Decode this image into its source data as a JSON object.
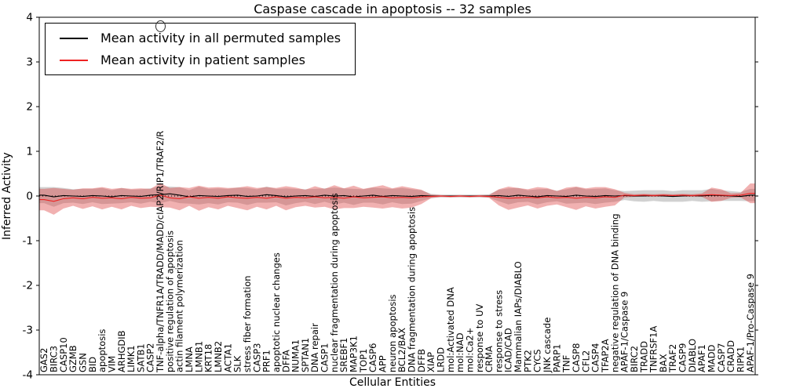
{
  "chart_data": {
    "type": "line",
    "title": "Caspase cascade in apoptosis -- 32 samples",
    "xlabel": "Cellular Entities",
    "ylabel": "Inferred Activity",
    "ylim": [
      -4,
      4
    ],
    "yticks": [
      -4,
      -3,
      -2,
      -1,
      0,
      1,
      2,
      3,
      4
    ],
    "grid": false,
    "legend_position": "upper left",
    "zero_line": {
      "value": 0,
      "style": "dotted"
    },
    "outlier_marker": {
      "category_index": 12,
      "value": 3.82,
      "shape": "circle"
    },
    "categories": [
      "GAS2",
      "BIRC3",
      "CASP10",
      "GZMB",
      "GSN",
      "BID",
      "apoptosis",
      "VIM",
      "ARHGDIB",
      "LIMK1",
      "SATB1",
      "CASP2",
      "TNF-alpha/TNFR1A/TRADD/MADD/cIAP2/RIP1/TRAF2/R",
      "positive regulation of apoptosis",
      "actin filament polymerization",
      "LMNA",
      "LMNB1",
      "KRT18",
      "LMNB2",
      "ACTA1",
      "SLK",
      "stress fiber formation",
      "CASP3",
      "PRF1",
      "apoptotic nuclear changes",
      "DFFA",
      "NUMA1",
      "SPTAN1",
      "DNA repair",
      "CASP1",
      "nuclear fragmentation during apoptosis",
      "SREBF1",
      "MAP3K1",
      "TOP1",
      "CASP6",
      "APP",
      "neuron apoptosis",
      "BCL2/BAX",
      "DNA fragmentation during apoptosis",
      "DFFB",
      "XIAP",
      "LRDD",
      "mol:Activated DNA",
      "mol:NAD",
      "mol:Ca2+",
      "response to UV",
      "CRMA",
      "response to stress",
      "ICAD/CAD",
      "Mammalian IAPs/DIABLO",
      "PTK2",
      "CYCS",
      "JNK cascade",
      "PARP1",
      "TNF",
      "CASP8",
      "CFL2",
      "CASP4",
      "TFAP2A",
      "negative regulation of DNA binding",
      "APAF-1/Caspase 9",
      "BIRC2",
      "TRADD",
      "TNFRSF1A",
      "BAX",
      "TRAF2",
      "CASP9",
      "DIABLO",
      "APAF1",
      "MADD",
      "CASP7",
      "CRADD",
      "RIPK1",
      "APAF-1/Pro-Caspase 9"
    ],
    "series": [
      {
        "name": "Mean activity in all permuted samples",
        "color": "#000000",
        "values": [
          0.02,
          -0.02,
          0.01,
          0.0,
          -0.01,
          0.01,
          0.0,
          -0.02,
          0.01,
          0.0,
          -0.01,
          0.02,
          0.03,
          0.05,
          0.02,
          -0.02,
          0.01,
          0.0,
          -0.01,
          0.01,
          0.02,
          -0.01,
          0.0,
          0.03,
          0.01,
          -0.02,
          0.0,
          0.01,
          -0.01,
          0.02,
          0.0,
          0.01,
          -0.02,
          0.0,
          0.02,
          -0.01,
          0.01,
          0.0,
          -0.01,
          0.01,
          0.0,
          0.0,
          0.0,
          0.0,
          0.0,
          0.0,
          0.0,
          0.01,
          -0.01,
          0.02,
          0.0,
          -0.02,
          0.01,
          0.0,
          -0.01,
          0.02,
          0.0,
          -0.01,
          0.01,
          0.0,
          0.01,
          0.0,
          0.0,
          0.01,
          0.0,
          -0.01,
          0.0,
          0.01,
          0.0,
          0.02,
          0.01,
          0.0,
          -0.01,
          0.02
        ],
        "band": {
          "name": "permuted-std-band",
          "color": "#9a9a9a",
          "opacity": 0.45,
          "half_widths": [
            0.18,
            0.22,
            0.17,
            0.15,
            0.17,
            0.15,
            0.18,
            0.15,
            0.17,
            0.14,
            0.16,
            0.15,
            0.19,
            0.16,
            0.18,
            0.15,
            0.2,
            0.16,
            0.18,
            0.15,
            0.17,
            0.19,
            0.15,
            0.18,
            0.15,
            0.19,
            0.16,
            0.14,
            0.17,
            0.15,
            0.19,
            0.16,
            0.18,
            0.15,
            0.17,
            0.18,
            0.15,
            0.18,
            0.16,
            0.12,
            0.05,
            0.03,
            0.03,
            0.03,
            0.03,
            0.03,
            0.04,
            0.13,
            0.18,
            0.16,
            0.13,
            0.17,
            0.15,
            0.12,
            0.16,
            0.18,
            0.15,
            0.17,
            0.16,
            0.13,
            0.1,
            0.12,
            0.13,
            0.12,
            0.13,
            0.12,
            0.13,
            0.12,
            0.13,
            0.14,
            0.12,
            0.11,
            0.1,
            0.14
          ]
        }
      },
      {
        "name": "Mean activity in patient samples",
        "color": "#ee2222",
        "values": [
          -0.08,
          -0.12,
          -0.06,
          -0.04,
          -0.06,
          -0.03,
          -0.05,
          -0.04,
          -0.06,
          -0.03,
          -0.05,
          -0.04,
          0.02,
          -0.04,
          -0.06,
          -0.02,
          -0.05,
          -0.03,
          -0.05,
          -0.02,
          -0.04,
          -0.05,
          -0.03,
          -0.05,
          -0.02,
          -0.05,
          -0.03,
          -0.04,
          -0.02,
          -0.04,
          -0.03,
          -0.05,
          -0.02,
          -0.04,
          -0.03,
          -0.02,
          -0.04,
          -0.03,
          -0.04,
          -0.02,
          -0.01,
          0.0,
          -0.01,
          0.0,
          -0.01,
          0.0,
          -0.01,
          -0.03,
          -0.05,
          -0.04,
          -0.03,
          -0.04,
          -0.02,
          -0.04,
          -0.03,
          -0.05,
          -0.03,
          -0.04,
          -0.02,
          -0.03,
          0.02,
          0.01,
          0.02,
          0.01,
          0.02,
          0.01,
          0.02,
          0.01,
          0.02,
          0.03,
          0.02,
          0.01,
          0.02,
          0.06
        ],
        "band": {
          "name": "patient-std-band",
          "color": "#dd4444",
          "opacity": 0.42,
          "half_widths": [
            0.24,
            0.3,
            0.22,
            0.18,
            0.23,
            0.2,
            0.25,
            0.2,
            0.24,
            0.19,
            0.22,
            0.2,
            0.27,
            0.22,
            0.26,
            0.2,
            0.28,
            0.22,
            0.25,
            0.2,
            0.23,
            0.27,
            0.21,
            0.25,
            0.2,
            0.27,
            0.22,
            0.18,
            0.24,
            0.2,
            0.27,
            0.22,
            0.25,
            0.2,
            0.23,
            0.26,
            0.21,
            0.25,
            0.22,
            0.16,
            0.04,
            0.02,
            0.02,
            0.02,
            0.02,
            0.02,
            0.03,
            0.18,
            0.26,
            0.22,
            0.18,
            0.24,
            0.2,
            0.15,
            0.22,
            0.26,
            0.2,
            0.24,
            0.22,
            0.18,
            0.05,
            0.03,
            0.03,
            0.03,
            0.03,
            0.03,
            0.03,
            0.03,
            0.04,
            0.16,
            0.13,
            0.05,
            0.05,
            0.22
          ]
        }
      }
    ]
  },
  "legend": {
    "items": [
      {
        "label": "Mean activity in all permuted samples",
        "color": "#000000"
      },
      {
        "label": "Mean activity in patient samples",
        "color": "#ee2222"
      }
    ]
  }
}
